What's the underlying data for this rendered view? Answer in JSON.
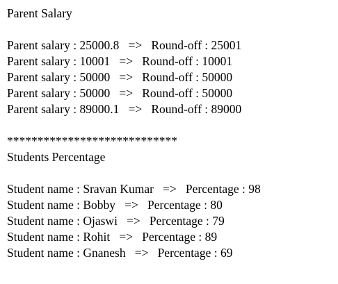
{
  "output": {
    "salary_heading": "Parent Salary",
    "salary_lines": [
      "Parent salary : 25000.8   =>   Round-off : 25001",
      "Parent salary : 10001   =>   Round-off : 10001",
      "Parent salary : 50000   =>   Round-off : 50000",
      "Parent salary : 50000   =>   Round-off : 50000",
      "Parent salary : 89000.1   =>   Round-off : 89000"
    ],
    "separator": "****************************",
    "students_heading": "Students Percentage",
    "student_lines": [
      "Student name : Sravan Kumar   =>   Percentage : 98",
      "Student name : Bobby   =>   Percentage : 80",
      "Student name : Ojaswi   =>   Percentage : 79",
      "Student name : Rohit   =>   Percentage : 89",
      "Student name : Gnanesh   =>   Percentage : 69"
    ]
  }
}
